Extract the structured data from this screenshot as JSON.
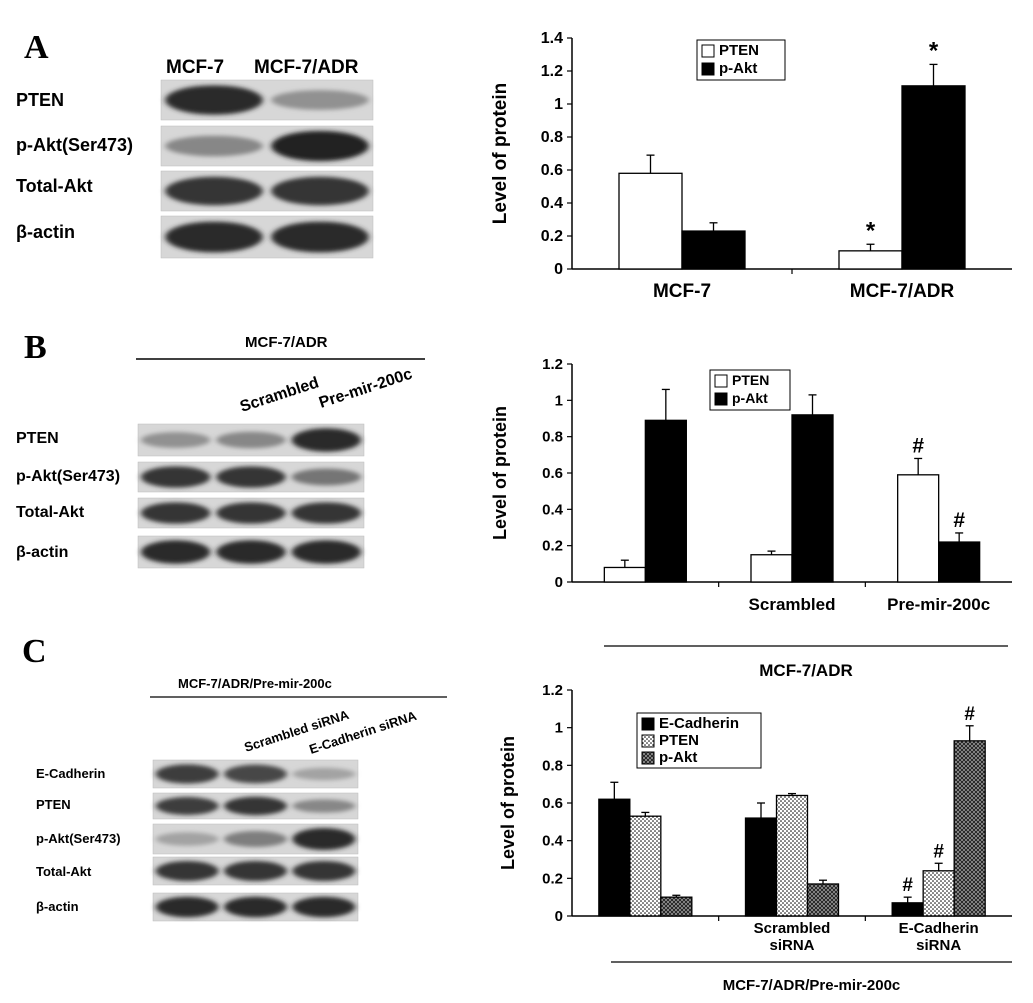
{
  "panels": [
    {
      "letter": "A",
      "blot": {
        "header": "",
        "lanes": [
          "MCF-7",
          "MCF-7/ADR"
        ],
        "rows": [
          {
            "label": "PTEN",
            "intensities": [
              0.85,
              0.3
            ]
          },
          {
            "label": "p-Akt(Ser473)",
            "intensities": [
              0.35,
              0.9
            ]
          },
          {
            "label": "Total-Akt",
            "intensities": [
              0.8,
              0.8
            ]
          },
          {
            "label": "β-actin",
            "intensities": [
              0.85,
              0.85
            ]
          }
        ]
      }
    },
    {
      "letter": "B",
      "blot": {
        "header": "MCF-7/ADR",
        "lanes": [
          "",
          "Scrambled",
          "Pre-mir-200c"
        ],
        "rows": [
          {
            "label": "PTEN",
            "intensities": [
              0.3,
              0.35,
              0.85
            ]
          },
          {
            "label": "p-Akt(Ser473)",
            "intensities": [
              0.8,
              0.8,
              0.45
            ]
          },
          {
            "label": "Total-Akt",
            "intensities": [
              0.8,
              0.8,
              0.8
            ]
          },
          {
            "label": "β-actin",
            "intensities": [
              0.85,
              0.85,
              0.85
            ]
          }
        ]
      }
    },
    {
      "letter": "C",
      "blot": {
        "header": "MCF-7/ADR/Pre-mir-200c",
        "lanes": [
          "",
          "Scrambled siRNA",
          "E-Cadherin siRNA"
        ],
        "rows": [
          {
            "label": "E-Cadherin",
            "intensities": [
              0.75,
              0.7,
              0.2
            ]
          },
          {
            "label": "PTEN",
            "intensities": [
              0.75,
              0.8,
              0.35
            ]
          },
          {
            "label": "p-Akt(Ser473)",
            "intensities": [
              0.2,
              0.4,
              0.85
            ]
          },
          {
            "label": "Total-Akt",
            "intensities": [
              0.8,
              0.8,
              0.8
            ]
          },
          {
            "label": "β-actin",
            "intensities": [
              0.85,
              0.85,
              0.85
            ]
          }
        ]
      }
    }
  ],
  "chart_data": [
    {
      "type": "bar",
      "panel": "A",
      "ylabel": "Level of protein",
      "ylim": [
        0,
        1.4
      ],
      "yticks": [
        "0",
        "0.2",
        "0.4",
        "0.6",
        "0.8",
        "1",
        "1.2",
        "1.4"
      ],
      "categories": [
        "MCF-7",
        "MCF-7/ADR"
      ],
      "series": [
        {
          "name": "PTEN",
          "fill": "#ffffff",
          "values": [
            0.58,
            0.11
          ],
          "errors": [
            0.11,
            0.04
          ],
          "marks": [
            "",
            "*"
          ]
        },
        {
          "name": "p-Akt",
          "fill": "#000000",
          "values": [
            0.23,
            1.11
          ],
          "errors": [
            0.05,
            0.13
          ],
          "marks": [
            "",
            "*"
          ]
        }
      ],
      "legend": "top",
      "group_label": ""
    },
    {
      "type": "bar",
      "panel": "B",
      "ylabel": "Level of protein",
      "ylim": [
        0,
        1.2
      ],
      "yticks": [
        "0",
        "0.2",
        "0.4",
        "0.6",
        "0.8",
        "1",
        "1.2"
      ],
      "categories": [
        "",
        "Scrambled",
        "Pre-mir-200c"
      ],
      "series": [
        {
          "name": "PTEN",
          "fill": "#ffffff",
          "values": [
            0.08,
            0.15,
            0.59
          ],
          "errors": [
            0.04,
            0.02,
            0.09
          ],
          "marks": [
            "",
            "",
            "#"
          ]
        },
        {
          "name": "p-Akt",
          "fill": "#000000",
          "values": [
            0.89,
            0.92,
            0.22
          ],
          "errors": [
            0.17,
            0.11,
            0.05
          ],
          "marks": [
            "",
            "",
            "#"
          ]
        }
      ],
      "legend": "top-right",
      "group_label": "MCF-7/ADR"
    },
    {
      "type": "bar",
      "panel": "C",
      "ylabel": "Level of protein",
      "ylim": [
        0,
        1.2
      ],
      "yticks": [
        "0",
        "0.2",
        "0.4",
        "0.6",
        "0.8",
        "1",
        "1.2"
      ],
      "categories": [
        "",
        "Scrambled siRNA",
        "E-Cadherin siRNA"
      ],
      "series": [
        {
          "name": "E-Cadherin",
          "fill": "#000000",
          "values": [
            0.62,
            0.52,
            0.07
          ],
          "errors": [
            0.09,
            0.08,
            0.03
          ],
          "marks": [
            "",
            "",
            "#"
          ]
        },
        {
          "name": "PTEN",
          "fill": "dots",
          "values": [
            0.53,
            0.64,
            0.24
          ],
          "errors": [
            0.02,
            0.01,
            0.04
          ],
          "marks": [
            "",
            "",
            "#"
          ]
        },
        {
          "name": "p-Akt",
          "fill": "cross",
          "values": [
            0.1,
            0.17,
            0.93
          ],
          "errors": [
            0.01,
            0.02,
            0.08
          ],
          "marks": [
            "",
            "",
            "#"
          ]
        }
      ],
      "legend": "top-left",
      "group_label": "MCF-7/ADR/Pre-mir-200c"
    }
  ]
}
